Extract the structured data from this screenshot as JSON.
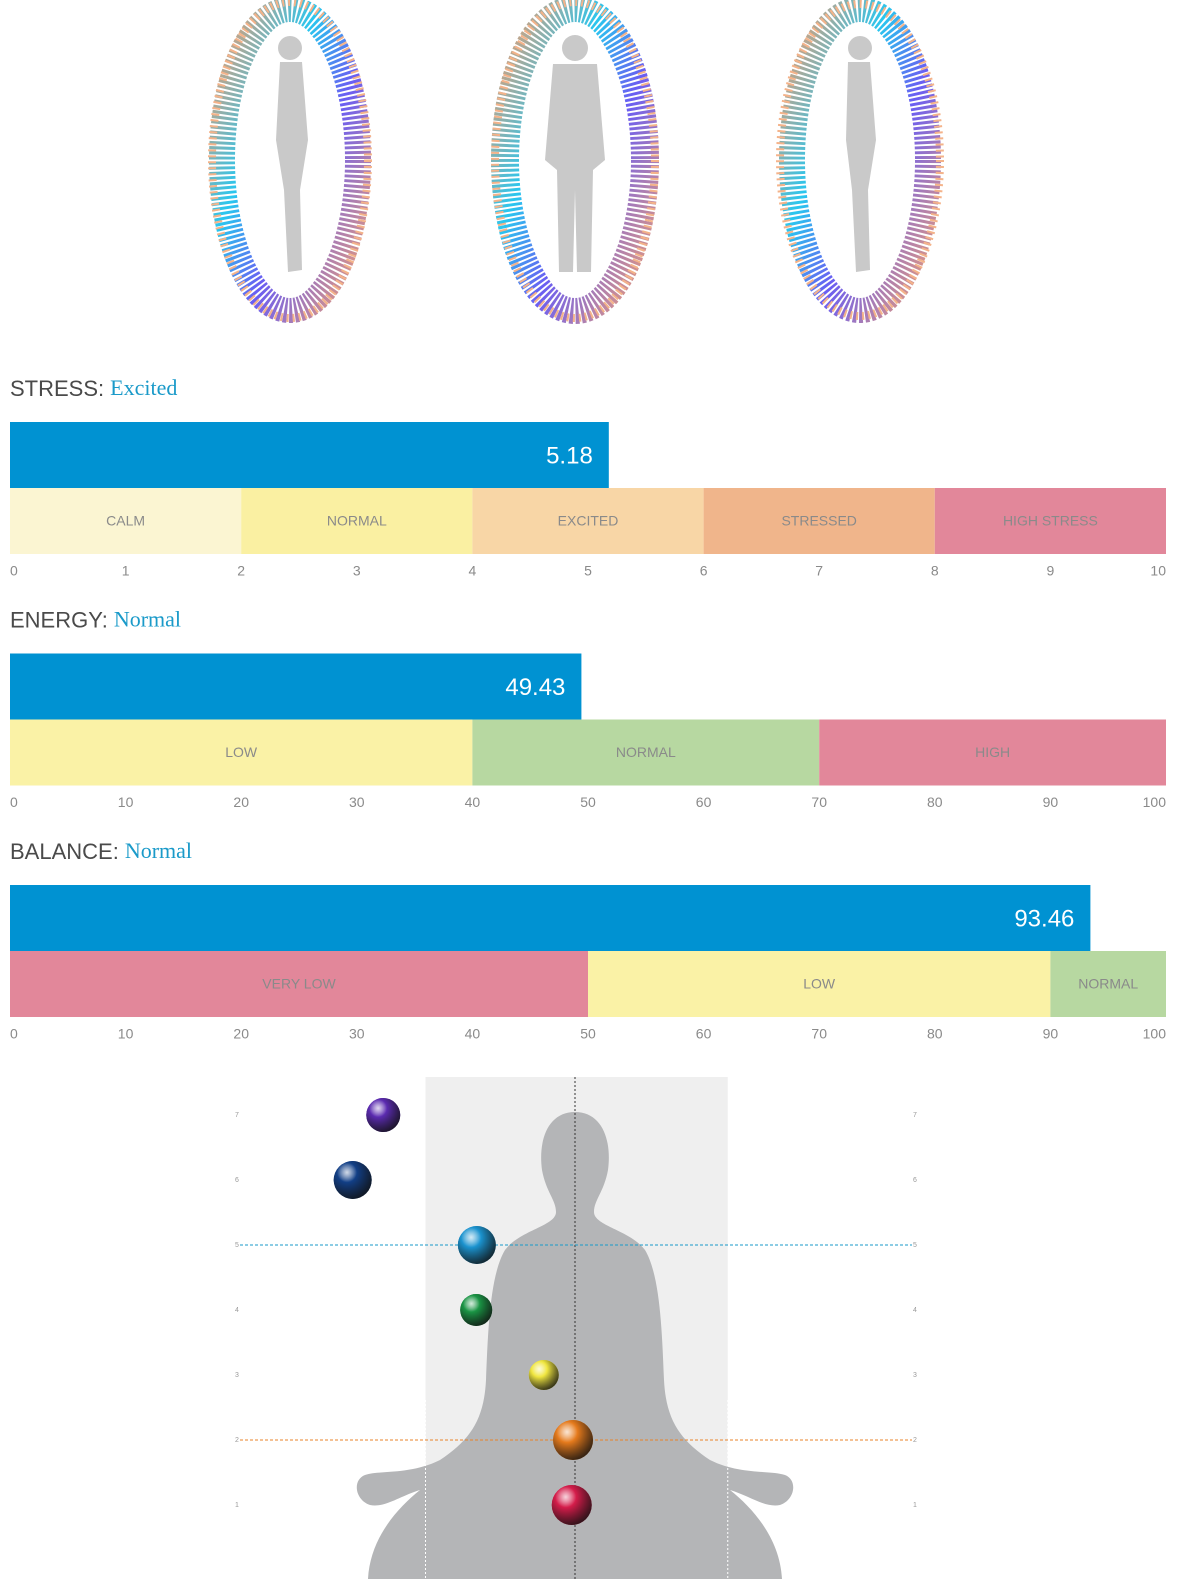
{
  "chart_data": [
    {
      "type": "bar",
      "title": "STRESS:",
      "status": "Excited",
      "value": 5.18,
      "color": "#0092d2",
      "xlim": [
        0,
        10
      ],
      "xticks": [
        0,
        1,
        2,
        3,
        4,
        5,
        6,
        7,
        8,
        9,
        10
      ],
      "zones": [
        {
          "label": "CALM",
          "from": 0,
          "to": 2,
          "color": "#fbf5d2"
        },
        {
          "label": "NORMAL",
          "from": 2,
          "to": 4,
          "color": "#faf0a2"
        },
        {
          "label": "EXCITED",
          "from": 4,
          "to": 6,
          "color": "#f8d6a6"
        },
        {
          "label": "STRESSED",
          "from": 6,
          "to": 8,
          "color": "#f0b58b"
        },
        {
          "label": "HIGH STRESS",
          "from": 8,
          "to": 10,
          "color": "#e2879a"
        }
      ]
    },
    {
      "type": "bar",
      "title": "ENERGY:",
      "status": "Normal",
      "value": 49.43,
      "color": "#0092d2",
      "xlim": [
        0,
        100
      ],
      "xticks": [
        0,
        10,
        20,
        30,
        40,
        50,
        60,
        70,
        80,
        90,
        100
      ],
      "zones": [
        {
          "label": "LOW",
          "from": 0,
          "to": 40,
          "color": "#faf2a6"
        },
        {
          "label": "NORMAL",
          "from": 40,
          "to": 70,
          "color": "#b7d8a1"
        },
        {
          "label": "HIGH",
          "from": 70,
          "to": 100,
          "color": "#e2879a"
        }
      ]
    },
    {
      "type": "bar",
      "title": "BALANCE:",
      "status": "Normal",
      "value": 93.46,
      "color": "#0092d2",
      "xlim": [
        0,
        100
      ],
      "xticks": [
        0,
        10,
        20,
        30,
        40,
        50,
        60,
        70,
        80,
        90,
        100
      ],
      "zones": [
        {
          "label": "VERY LOW",
          "from": 0,
          "to": 50,
          "color": "#e2879a"
        },
        {
          "label": "LOW",
          "from": 50,
          "to": 90,
          "color": "#faf2a6"
        },
        {
          "label": "NORMAL",
          "from": 90,
          "to": 100,
          "color": "#b7d8a1"
        }
      ]
    },
    {
      "type": "scatter",
      "x": [
        -2.95,
        -3.42,
        -1.51,
        -1.52,
        -0.48,
        -0.03,
        -0.05
      ],
      "values": [
        7,
        6,
        5,
        4,
        3,
        2,
        1
      ],
      "sizes": [
        17,
        19,
        19,
        16,
        15,
        20,
        20
      ],
      "colors": [
        "#5b2bb0",
        "#123f86",
        "#1b93cf",
        "#1a9444",
        "#f0e640",
        "#e57a1c",
        "#d41c4a"
      ],
      "xlim": [
        -5,
        5
      ],
      "ylim": [
        0,
        8
      ],
      "yticks": [
        1,
        2,
        3,
        4,
        5,
        6,
        7
      ],
      "band": [
        -2.3,
        2.35
      ],
      "reference_lines": [
        {
          "value": 5,
          "color": "#1a9ac9"
        },
        {
          "value": 2,
          "color": "#e8832a"
        }
      ]
    }
  ]
}
